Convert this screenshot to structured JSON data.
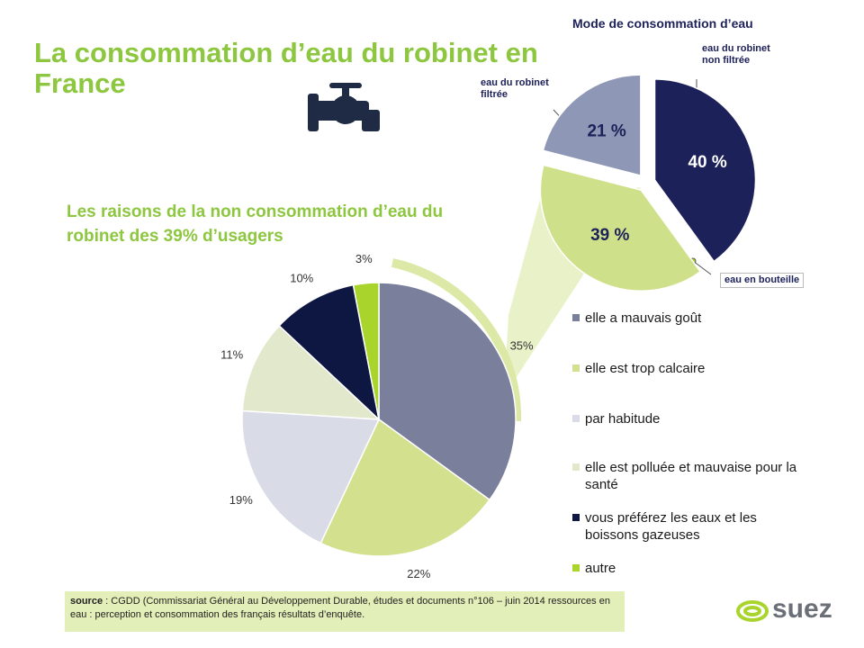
{
  "title": "La consommation d’eau du robinet en France",
  "chart_data": [
    {
      "type": "pie",
      "title": "Mode de consommation d’eau",
      "categories": [
        "eau du robinet non filtrée",
        "eau en bouteille",
        "eau du robinet filtrée"
      ],
      "values": [
        40,
        39,
        21
      ],
      "value_labels": [
        "40 %",
        "39 %",
        "21 %"
      ],
      "colors": [
        "#1d2159",
        "#cfe08a",
        "#8e97b5"
      ]
    },
    {
      "type": "pie",
      "title": "Les raisons de la non consommation d’eau du robinet des 39% d’usagers",
      "categories": [
        "elle a mauvais goût",
        "elle est trop calcaire",
        "par habitude",
        "elle est polluée et mauvaise pour la santé",
        "vous préférez les eaux et les boissons gazeuses",
        "autre"
      ],
      "values": [
        35,
        22,
        19,
        11,
        10,
        3
      ],
      "value_labels": [
        "35%",
        "22%",
        "19%",
        "11%",
        "10%",
        "3%"
      ],
      "colors": [
        "#7a7f9c",
        "#d3e08e",
        "#d9dbe6",
        "#e2e8cc",
        "#0e1741",
        "#a8d42b"
      ]
    }
  ],
  "source": {
    "label": "source",
    "text": " : CGDD (Commissariat Général au Développement Durable, études et documents n°106 – juin 2014 ressources en eau :  perception et consommation des français résultats d’enquête."
  },
  "logo": "suez"
}
